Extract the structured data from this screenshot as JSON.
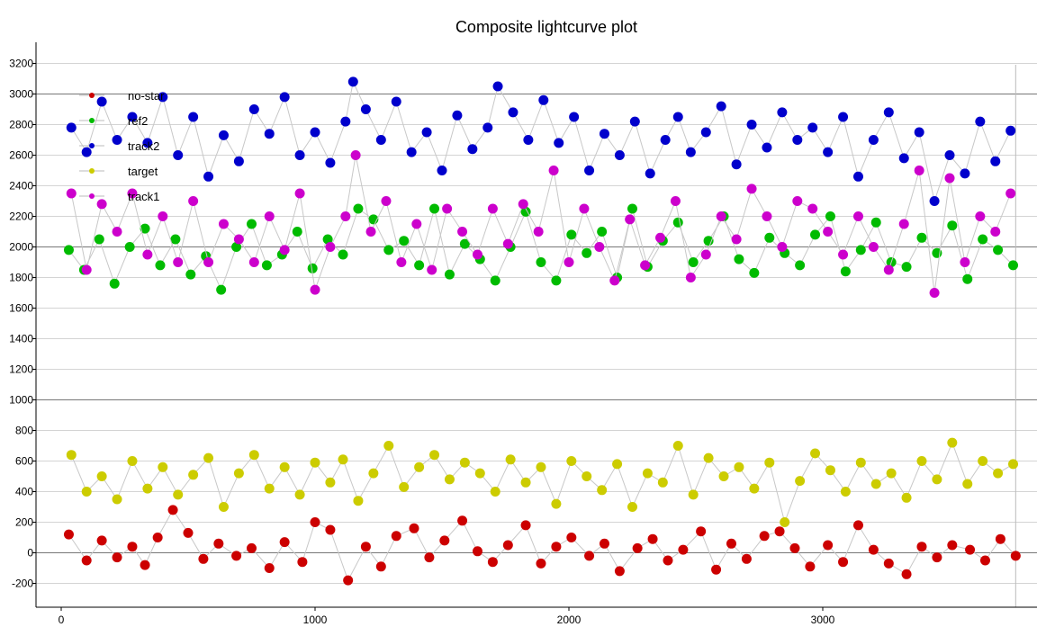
{
  "chart_data": {
    "type": "scatter",
    "title": "Composite lightcurve plot",
    "xlabel": "",
    "ylabel": "",
    "xlim": [
      -100,
      3800
    ],
    "ylim": [
      -300,
      3300
    ],
    "x_ticks": [
      0,
      1000,
      2000,
      3000
    ],
    "x_tick_labels": [
      "0",
      "1000",
      "2000",
      "3000"
    ],
    "y_ticks": [
      -200,
      0,
      200,
      400,
      600,
      800,
      1000,
      1200,
      1400,
      1600,
      1800,
      2000,
      2200,
      2400,
      2600,
      2800,
      3000,
      3200
    ],
    "y_tick_labels": [
      "-200",
      "0",
      "200",
      "400",
      "600",
      "800",
      "1000",
      "1200",
      "1400",
      "1600",
      "1800",
      "2000",
      "2200",
      "2400",
      "2600",
      "2800",
      "3000",
      "3200"
    ],
    "grid": true,
    "legend_position": "top-left",
    "series": [
      {
        "name": "no-star",
        "color": "#cc0000",
        "x": [
          30,
          100,
          160,
          220,
          280,
          330,
          380,
          440,
          500,
          560,
          620,
          690,
          750,
          820,
          880,
          950,
          1000,
          1060,
          1130,
          1200,
          1260,
          1320,
          1390,
          1450,
          1510,
          1580,
          1640,
          1700,
          1760,
          1830,
          1890,
          1950,
          2010,
          2080,
          2140,
          2200,
          2270,
          2330,
          2390,
          2450,
          2520,
          2580,
          2640,
          2700,
          2770,
          2830,
          2890,
          2950,
          3020,
          3080,
          3140,
          3200,
          3260,
          3330,
          3390,
          3450,
          3510,
          3580,
          3640,
          3700,
          3760
        ],
        "y": [
          120,
          -50,
          80,
          -30,
          40,
          -80,
          100,
          280,
          130,
          -40,
          60,
          -20,
          30,
          -100,
          70,
          -60,
          200,
          150,
          -180,
          40,
          -90,
          110,
          160,
          -30,
          80,
          210,
          10,
          -60,
          50,
          180,
          -70,
          40,
          100,
          -20,
          60,
          -120,
          30,
          90,
          -50,
          20,
          140,
          -110,
          60,
          -40,
          110,
          140,
          30,
          -90,
          50,
          -60,
          180,
          20,
          -70,
          -140,
          40,
          -30,
          50,
          20,
          -50,
          90,
          -20
        ]
      },
      {
        "name": "ref2",
        "color": "#00bb00",
        "x": [
          30,
          90,
          150,
          210,
          270,
          330,
          390,
          450,
          510,
          570,
          630,
          690,
          750,
          810,
          870,
          930,
          990,
          1050,
          1110,
          1170,
          1230,
          1290,
          1350,
          1410,
          1470,
          1530,
          1590,
          1650,
          1710,
          1770,
          1830,
          1890,
          1950,
          2010,
          2070,
          2130,
          2190,
          2250,
          2310,
          2370,
          2430,
          2490,
          2550,
          2610,
          2670,
          2730,
          2790,
          2850,
          2910,
          2970,
          3030,
          3090,
          3150,
          3210,
          3270,
          3330,
          3390,
          3450,
          3510,
          3570,
          3630,
          3690,
          3750
        ],
        "y": [
          1980,
          1850,
          2050,
          1760,
          2000,
          2120,
          1880,
          2050,
          1820,
          1940,
          1720,
          2000,
          2150,
          1880,
          1950,
          2100,
          1860,
          2050,
          1950,
          2250,
          2180,
          1980,
          2040,
          1880,
          2250,
          1820,
          2020,
          1920,
          1780,
          2000,
          2230,
          1900,
          1780,
          2080,
          1960,
          2100,
          1800,
          2250,
          1870,
          2040,
          2160,
          1900,
          2040,
          2200,
          1920,
          1830,
          2060,
          1960,
          1880,
          2080,
          2200,
          1840,
          1980,
          2160,
          1900,
          1870,
          2060,
          1960,
          2140,
          1790,
          2050,
          1980,
          1880
        ]
      },
      {
        "name": "track2",
        "color": "#0000cc",
        "x": [
          40,
          100,
          160,
          220,
          280,
          340,
          400,
          460,
          520,
          580,
          640,
          700,
          760,
          820,
          880,
          940,
          1000,
          1060,
          1120,
          1150,
          1200,
          1260,
          1320,
          1380,
          1440,
          1500,
          1560,
          1620,
          1680,
          1720,
          1780,
          1840,
          1900,
          1960,
          2020,
          2080,
          2140,
          2200,
          2260,
          2320,
          2380,
          2430,
          2480,
          2540,
          2600,
          2660,
          2720,
          2780,
          2840,
          2900,
          2960,
          3020,
          3080,
          3140,
          3200,
          3260,
          3320,
          3380,
          3440,
          3500,
          3560,
          3620,
          3680,
          3740
        ],
        "y": [
          2780,
          2620,
          2950,
          2700,
          2850,
          2680,
          2980,
          2600,
          2850,
          2460,
          2730,
          2560,
          2900,
          2740,
          2980,
          2600,
          2750,
          2550,
          2820,
          3080,
          2900,
          2700,
          2950,
          2620,
          2750,
          2500,
          2860,
          2640,
          2780,
          3050,
          2880,
          2700,
          2960,
          2680,
          2850,
          2500,
          2740,
          2600,
          2820,
          2480,
          2700,
          2850,
          2620,
          2750,
          2920,
          2540,
          2800,
          2650,
          2880,
          2700,
          2780,
          2620,
          2850,
          2460,
          2700,
          2880,
          2580,
          2750,
          2300,
          2600,
          2480,
          2820,
          2560,
          2760
        ]
      },
      {
        "name": "target",
        "color": "#cccc00",
        "x": [
          40,
          100,
          160,
          220,
          280,
          340,
          400,
          460,
          520,
          580,
          640,
          700,
          760,
          820,
          880,
          940,
          1000,
          1060,
          1110,
          1170,
          1230,
          1290,
          1350,
          1410,
          1470,
          1530,
          1590,
          1650,
          1710,
          1770,
          1830,
          1890,
          1950,
          2010,
          2070,
          2130,
          2190,
          2250,
          2310,
          2370,
          2430,
          2490,
          2550,
          2610,
          2670,
          2730,
          2790,
          2850,
          2910,
          2970,
          3030,
          3090,
          3150,
          3210,
          3270,
          3330,
          3390,
          3450,
          3510,
          3570,
          3630,
          3690,
          3750
        ],
        "y": [
          640,
          400,
          500,
          350,
          600,
          420,
          560,
          380,
          510,
          620,
          300,
          520,
          640,
          420,
          560,
          380,
          590,
          460,
          610,
          340,
          520,
          700,
          430,
          560,
          640,
          480,
          590,
          520,
          400,
          610,
          460,
          560,
          320,
          600,
          500,
          410,
          580,
          300,
          520,
          460,
          700,
          380,
          620,
          500,
          560,
          420,
          590,
          200,
          470,
          650,
          540,
          400,
          590,
          450,
          520,
          360,
          600,
          480,
          720,
          450,
          600,
          520,
          580
        ]
      },
      {
        "name": "track1",
        "color": "#cc00cc",
        "x": [
          40,
          100,
          160,
          220,
          280,
          340,
          400,
          460,
          520,
          580,
          640,
          700,
          760,
          820,
          880,
          940,
          1000,
          1060,
          1120,
          1160,
          1220,
          1280,
          1340,
          1400,
          1460,
          1520,
          1580,
          1640,
          1700,
          1760,
          1820,
          1880,
          1940,
          2000,
          2060,
          2120,
          2180,
          2240,
          2300,
          2360,
          2420,
          2480,
          2540,
          2600,
          2660,
          2720,
          2780,
          2840,
          2900,
          2960,
          3020,
          3080,
          3140,
          3200,
          3260,
          3320,
          3380,
          3440,
          3500,
          3560,
          3620,
          3680,
          3740
        ],
        "y": [
          2350,
          1850,
          2280,
          2100,
          2350,
          1950,
          2200,
          1900,
          2300,
          1900,
          2150,
          2050,
          1900,
          2200,
          1980,
          2350,
          1720,
          2000,
          2200,
          2600,
          2100,
          2300,
          1900,
          2150,
          1850,
          2250,
          2100,
          1950,
          2250,
          2020,
          2280,
          2100,
          2500,
          1900,
          2250,
          2000,
          1780,
          2180,
          1880,
          2060,
          2300,
          1800,
          1950,
          2200,
          2050,
          2380,
          2200,
          2000,
          2300,
          2250,
          2100,
          1950,
          2200,
          2000,
          1850,
          2150,
          2500,
          1700,
          2450,
          1900,
          2200,
          2100,
          2350
        ]
      }
    ]
  }
}
